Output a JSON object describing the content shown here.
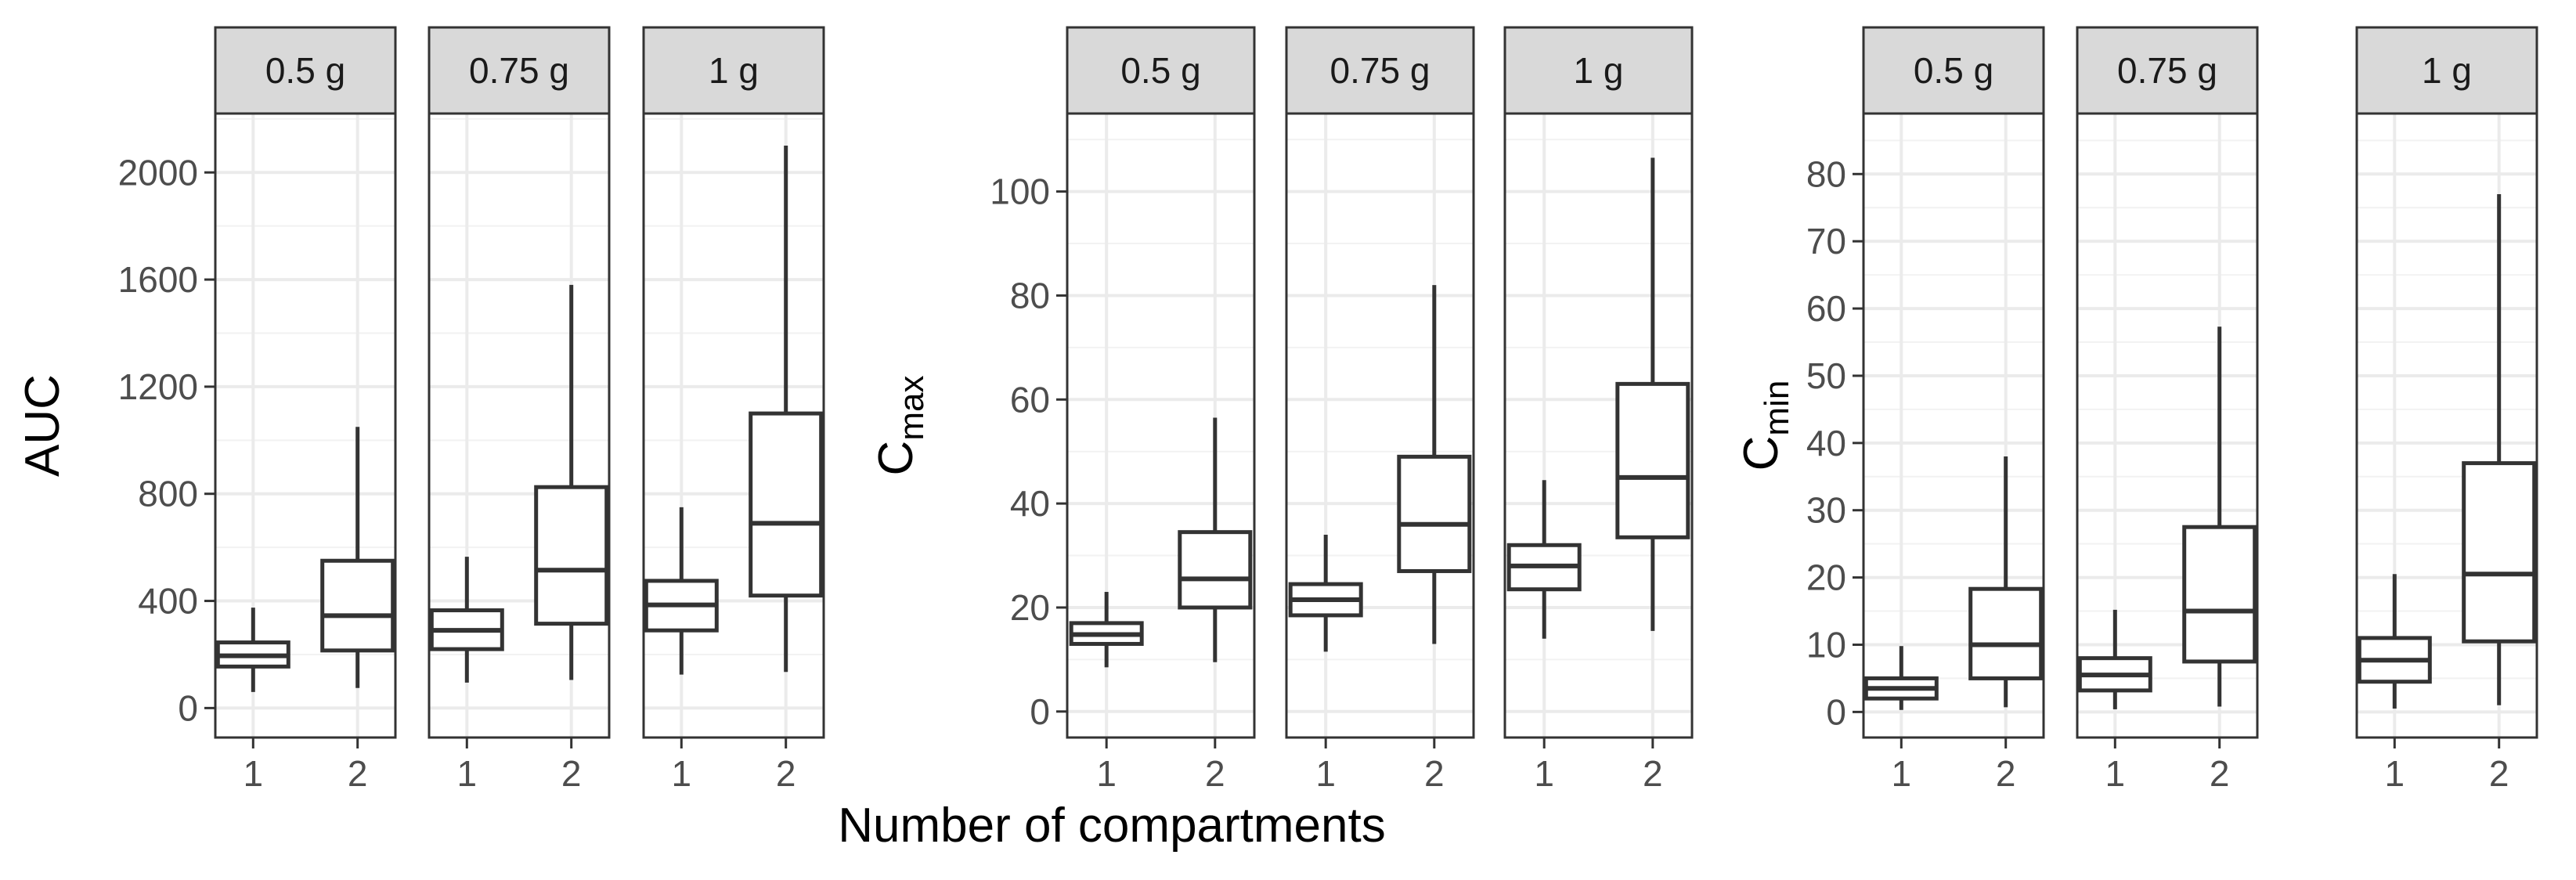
{
  "figure": {
    "xlabel": "Number of compartments",
    "panel_labels": [
      "0.5 g",
      "0.75 g",
      "1 g"
    ],
    "colors": {
      "box_line": "#333333",
      "strip_fill": "#d9d9d9",
      "strip_border": "#333333",
      "grid": "#ebebeb",
      "panel_border": "#333333"
    }
  },
  "chart_data": [
    {
      "type": "boxplot",
      "metric": "AUC",
      "ylabel": {
        "main": "AUC",
        "sub": ""
      },
      "ylim": [
        -110,
        2220
      ],
      "yticks": [
        0,
        400,
        800,
        1200,
        1600,
        2000
      ],
      "ytick_labels": [
        "0",
        "400",
        "800",
        "1200",
        "1600",
        "2000"
      ],
      "categories": [
        "1",
        "2"
      ],
      "facets": [
        {
          "label": "0.5 g",
          "boxes": [
            {
              "category": "1",
              "min": 60,
              "q1": 155,
              "median": 195,
              "q3": 245,
              "max": 375
            },
            {
              "category": "2",
              "min": 75,
              "q1": 215,
              "median": 345,
              "q3": 550,
              "max": 1050
            }
          ]
        },
        {
          "label": "0.75 g",
          "boxes": [
            {
              "category": "1",
              "min": 95,
              "q1": 220,
              "median": 290,
              "q3": 365,
              "max": 565
            },
            {
              "category": "2",
              "min": 105,
              "q1": 315,
              "median": 515,
              "q3": 825,
              "max": 1580
            }
          ]
        },
        {
          "label": "1 g",
          "boxes": [
            {
              "category": "1",
              "min": 125,
              "q1": 290,
              "median": 385,
              "q3": 475,
              "max": 750
            },
            {
              "category": "2",
              "min": 135,
              "q1": 420,
              "median": 690,
              "q3": 1100,
              "max": 2100
            }
          ]
        }
      ]
    },
    {
      "type": "boxplot",
      "metric": "Cmax",
      "ylabel": {
        "main": "C",
        "sub": "max"
      },
      "ylim": [
        -5,
        115
      ],
      "yticks": [
        0,
        20,
        40,
        60,
        80,
        100
      ],
      "ytick_labels": [
        "0",
        "20",
        "40",
        "60",
        "80",
        "100"
      ],
      "categories": [
        "1",
        "2"
      ],
      "facets": [
        {
          "label": "0.5 g",
          "boxes": [
            {
              "category": "1",
              "min": 8.5,
              "q1": 13,
              "median": 14.8,
              "q3": 17,
              "max": 23
            },
            {
              "category": "2",
              "min": 9.5,
              "q1": 20,
              "median": 25.5,
              "q3": 34.5,
              "max": 56.5
            }
          ]
        },
        {
          "label": "0.75 g",
          "boxes": [
            {
              "category": "1",
              "min": 11.5,
              "q1": 18.5,
              "median": 21.5,
              "q3": 24.5,
              "max": 34
            },
            {
              "category": "2",
              "min": 13,
              "q1": 27,
              "median": 36,
              "q3": 49,
              "max": 82
            }
          ]
        },
        {
          "label": "1 g",
          "boxes": [
            {
              "category": "1",
              "min": 14,
              "q1": 23.5,
              "median": 28,
              "q3": 32,
              "max": 44.5
            },
            {
              "category": "2",
              "min": 15.5,
              "q1": 33.5,
              "median": 45,
              "q3": 63,
              "max": 106.5
            }
          ]
        }
      ]
    },
    {
      "type": "boxplot",
      "metric": "Cmin",
      "ylabel": {
        "main": "C",
        "sub": "min"
      },
      "ylim": [
        -3.8,
        89
      ],
      "yticks": [
        0,
        10,
        20,
        30,
        40,
        50,
        60,
        70,
        80
      ],
      "ytick_labels": [
        "0",
        "10",
        "20",
        "30",
        "40",
        "50",
        "60",
        "70",
        "80"
      ],
      "categories": [
        "1",
        "2"
      ],
      "facets": [
        {
          "label": "0.5 g",
          "boxes": [
            {
              "category": "1",
              "min": 0.3,
              "q1": 2,
              "median": 3.5,
              "q3": 5,
              "max": 9.8
            },
            {
              "category": "2",
              "min": 0.7,
              "q1": 5,
              "median": 10,
              "q3": 18.3,
              "max": 38
            }
          ]
        },
        {
          "label": "0.75 g",
          "boxes": [
            {
              "category": "1",
              "min": 0.4,
              "q1": 3.2,
              "median": 5.5,
              "q3": 8,
              "max": 15.2
            },
            {
              "category": "2",
              "min": 0.8,
              "q1": 7.5,
              "median": 15,
              "q3": 27.5,
              "max": 57.3
            }
          ]
        },
        {
          "label": "1 g",
          "boxes": [
            {
              "category": "1",
              "min": 0.5,
              "q1": 4.5,
              "median": 7.7,
              "q3": 11,
              "max": 20.5
            },
            {
              "category": "2",
              "min": 1,
              "q1": 10.5,
              "median": 20.5,
              "q3": 37,
              "max": 77
            }
          ]
        }
      ]
    }
  ]
}
